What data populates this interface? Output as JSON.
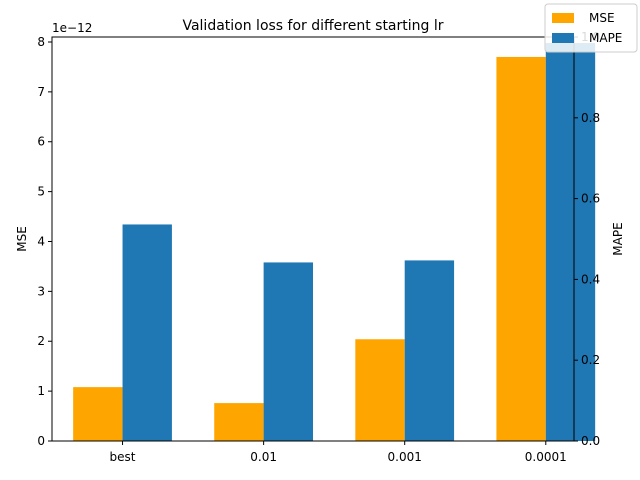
{
  "chart_data": {
    "type": "bar",
    "title": "Validation loss for different starting lr",
    "categories": [
      "best",
      "0.01",
      "0.001",
      "0.0001"
    ],
    "left_axis": {
      "label": "MSE",
      "ylim": [
        0,
        8.1
      ],
      "ticks": [
        0,
        1,
        2,
        3,
        4,
        5,
        6,
        7,
        8
      ],
      "tick_labels": [
        "0",
        "1",
        "2",
        "3",
        "4",
        "5",
        "6",
        "7",
        "8"
      ],
      "offset_label": "1e−12"
    },
    "right_axis": {
      "label": "MAPE",
      "ylim": [
        0,
        1.0
      ],
      "ticks": [
        0.0,
        0.2,
        0.4,
        0.6,
        0.8,
        1.0
      ],
      "tick_labels": [
        "0.0",
        "0.2",
        "0.4",
        "0.6",
        "0.8",
        "1.0"
      ]
    },
    "series": [
      {
        "name": "MSE",
        "axis": "left",
        "color": "#ffa500",
        "values": [
          1.08e-12,
          7.6e-13,
          2.04e-12,
          7.7e-12
        ]
      },
      {
        "name": "MAPE",
        "axis": "right",
        "color": "#1f77b4",
        "values": [
          0.536,
          0.442,
          0.447,
          0.985
        ]
      }
    ],
    "legend": {
      "placement": "top-right"
    },
    "grid": false
  }
}
